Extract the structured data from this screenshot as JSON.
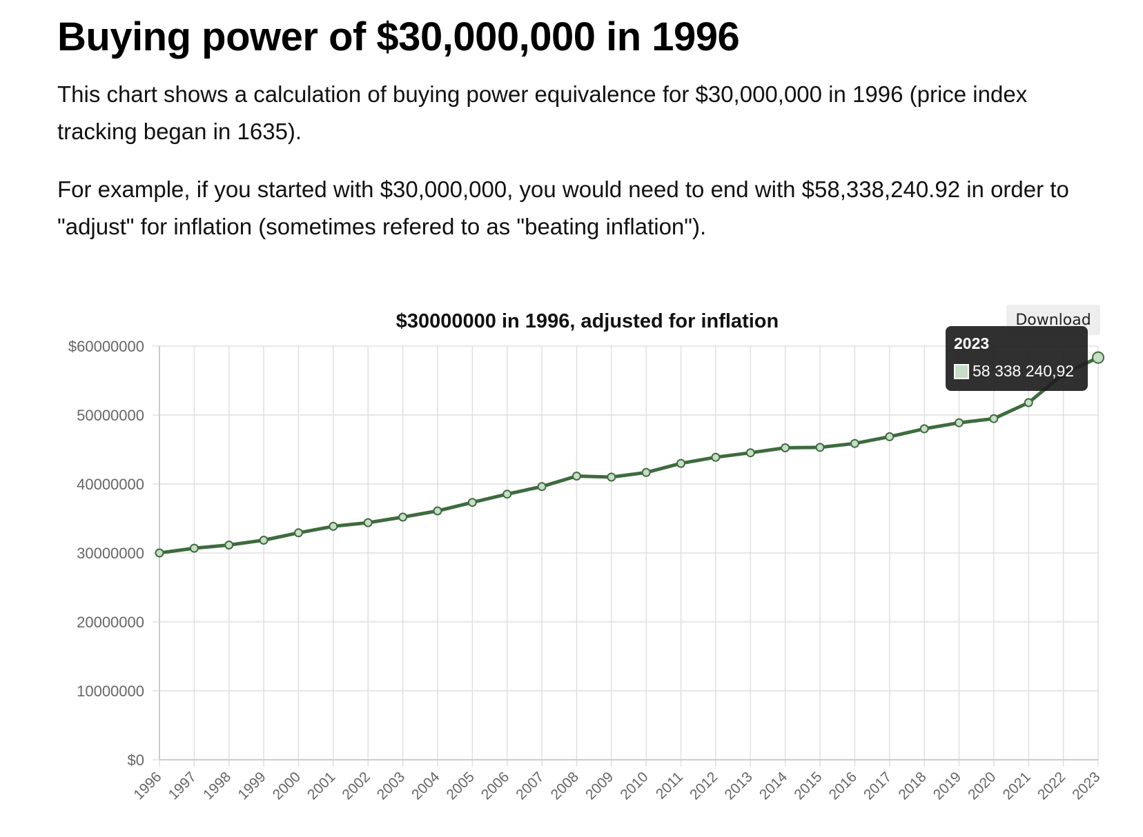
{
  "page": {
    "title": "Buying power of $30,000,000 in 1996",
    "paragraph1": "This chart shows a calculation of buying power equivalence for $30,000,000 in 1996 (price index tracking began in 1635).",
    "paragraph2": "For example, if you started with $30,000,000, you would need to end with $58,338,240.92 in order to \"adjust\" for inflation (sometimes refered to as \"beating inflation\")."
  },
  "download_label": "Download",
  "tooltip": {
    "title": "2023",
    "value": "58 338 240,92"
  },
  "colors": {
    "line": "#3e6b3e",
    "point_fill": "#c8dcc8",
    "grid": "#e0e0e0",
    "axis_text": "#666666"
  },
  "chart_data": {
    "type": "line",
    "title": "$30000000 in 1996, adjusted for inflation",
    "xlabel": "",
    "ylabel": "",
    "ylim": [
      0,
      60000000
    ],
    "y_ticks": [
      "$0",
      "10000000",
      "20000000",
      "30000000",
      "40000000",
      "50000000",
      "$60000000"
    ],
    "grid": true,
    "categories": [
      "1996",
      "1997",
      "1998",
      "1999",
      "2000",
      "2001",
      "2002",
      "2003",
      "2004",
      "2005",
      "2006",
      "2007",
      "2008",
      "2009",
      "2010",
      "2011",
      "2012",
      "2013",
      "2014",
      "2015",
      "2016",
      "2017",
      "2018",
      "2019",
      "2020",
      "2021",
      "2022",
      "2023"
    ],
    "series": [
      {
        "values": [
          30000000,
          30690000,
          31150000,
          31850000,
          32920000,
          33860000,
          34390000,
          35200000,
          36100000,
          37330000,
          38530000,
          39630000,
          41150000,
          41000000,
          41670000,
          42990000,
          43880000,
          44530000,
          45250000,
          45310000,
          45880000,
          46860000,
          48010000,
          48880000,
          49480000,
          51800000,
          55950000,
          58338240.92
        ]
      }
    ]
  }
}
